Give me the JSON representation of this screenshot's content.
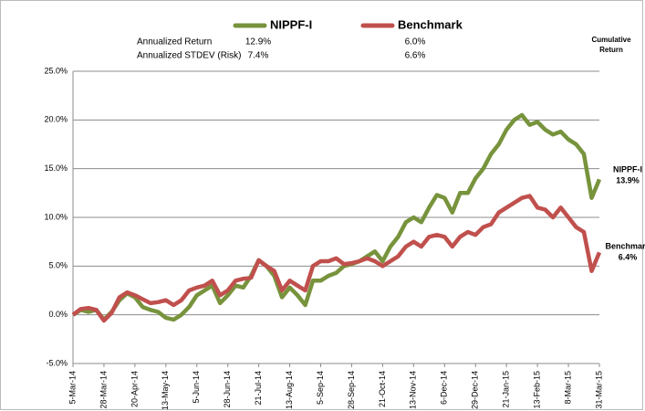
{
  "chart_data": {
    "type": "line",
    "legend": [
      "NIPPF-I",
      "Benchmark"
    ],
    "stats": {
      "rows": [
        {
          "label": "Annualized Return",
          "values": [
            "12.9%",
            "6.0%"
          ]
        },
        {
          "label": "Annualized STDEV (Risk)",
          "values": [
            "7.4%",
            "6.6%"
          ]
        }
      ],
      "header": [
        "Cumulative",
        "Return"
      ]
    },
    "categories": [
      "5-Mar-14",
      null,
      null,
      null,
      "28-Mar-14",
      null,
      null,
      null,
      "20-Apr-14",
      null,
      null,
      null,
      "13-May-14",
      null,
      null,
      null,
      "5-Jun-14",
      null,
      null,
      null,
      "28-Jun-14",
      null,
      null,
      null,
      "21-Jul-14",
      null,
      null,
      null,
      "13-Aug-14",
      null,
      null,
      null,
      "5-Sep-14",
      null,
      null,
      null,
      "28-Sep-14",
      null,
      null,
      null,
      "21-Oct-14",
      null,
      null,
      null,
      "13-Nov-14",
      null,
      null,
      null,
      "6-Dec-14",
      null,
      null,
      null,
      "29-Dec-14",
      null,
      null,
      null,
      "21-Jan-15",
      null,
      null,
      null,
      "13-Feb-15",
      null,
      null,
      null,
      "8-Mar-15",
      null,
      null,
      null,
      "31-Mar-15"
    ],
    "series": [
      {
        "name": "NIPPF-I",
        "color": "#77933c",
        "end_label": "13.9%",
        "values": [
          0,
          0.5,
          0.3,
          0.5,
          -0.5,
          0.3,
          1.5,
          2.2,
          1.8,
          0.8,
          0.5,
          0.3,
          -0.3,
          -0.5,
          0,
          0.8,
          2.0,
          2.5,
          3.0,
          1.2,
          2.0,
          3.0,
          2.8,
          4.0,
          5.6,
          5.0,
          4.0,
          1.8,
          2.8,
          2.0,
          1.0,
          3.5,
          3.5,
          4.0,
          4.3,
          5.0,
          5.2,
          5.5,
          6.0,
          6.5,
          5.5,
          7.0,
          8.0,
          9.5,
          10.0,
          9.5,
          11.0,
          12.3,
          12.0,
          10.5,
          12.5,
          12.5,
          14.0,
          15.0,
          16.5,
          17.5,
          19.0,
          20.0,
          20.5,
          19.5,
          19.8,
          19.0,
          18.5,
          18.8,
          18.0,
          17.5,
          16.5,
          12.0,
          13.9
        ]
      },
      {
        "name": "Benchmark",
        "color": "#c0504d",
        "end_label": "6.4%",
        "values": [
          0,
          0.6,
          0.7,
          0.5,
          -0.6,
          0.2,
          1.8,
          2.3,
          2.0,
          1.6,
          1.2,
          1.3,
          1.5,
          1.0,
          1.5,
          2.5,
          2.8,
          3.0,
          3.5,
          2.0,
          2.5,
          3.5,
          3.7,
          3.8,
          5.6,
          5.0,
          4.5,
          2.5,
          3.5,
          3.0,
          2.5,
          5.0,
          5.5,
          5.5,
          5.8,
          5.2,
          5.3,
          5.5,
          5.8,
          5.5,
          5.0,
          5.5,
          6.0,
          7.0,
          7.5,
          7.0,
          8.0,
          8.2,
          8.0,
          7.0,
          8.0,
          8.5,
          8.2,
          9.0,
          9.3,
          10.5,
          11.0,
          11.5,
          12.0,
          12.2,
          11.0,
          10.8,
          10.0,
          11.0,
          10.0,
          9.0,
          8.5,
          4.5,
          6.4
        ]
      }
    ],
    "ylim": [
      -5,
      25
    ],
    "yticks": [
      {
        "value": -5,
        "label": "-5.0%"
      },
      {
        "value": 0,
        "label": "0.0%"
      },
      {
        "value": 5,
        "label": "5.0%"
      },
      {
        "value": 10,
        "label": "10.0%"
      },
      {
        "value": 15,
        "label": "15.0%"
      },
      {
        "value": 20,
        "label": "20.0%"
      },
      {
        "value": 25,
        "label": "25.0%"
      }
    ],
    "grid": true
  }
}
